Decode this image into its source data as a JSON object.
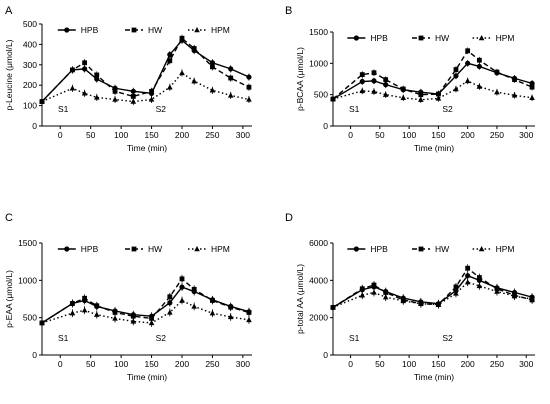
{
  "figure": {
    "legend_labels": [
      "HPB",
      "HW",
      "HPM"
    ],
    "xlabel": "Time (min)",
    "x_ticks": [
      0,
      50,
      100,
      150,
      200,
      250,
      300
    ],
    "session_labels": [
      "S1",
      "S2"
    ]
  },
  "chart_data": [
    {
      "panel": "A",
      "type": "line",
      "ylabel": "p-Leucine (μmol/L)",
      "ylim": [
        0,
        500
      ],
      "y_ticks": [
        0,
        100,
        200,
        300,
        400,
        500
      ],
      "xlim": [
        -30,
        315
      ],
      "x": [
        -30,
        20,
        40,
        60,
        90,
        120,
        150,
        180,
        200,
        220,
        250,
        280,
        310
      ],
      "series": [
        {
          "name": "HPB",
          "values": [
            120,
            275,
            280,
            230,
            185,
            170,
            160,
            350,
            420,
            370,
            310,
            280,
            240
          ]
        },
        {
          "name": "HW",
          "values": [
            120,
            275,
            310,
            250,
            170,
            145,
            170,
            320,
            430,
            380,
            290,
            235,
            190
          ]
        },
        {
          "name": "HPM",
          "values": [
            120,
            185,
            160,
            140,
            130,
            120,
            130,
            190,
            260,
            220,
            175,
            150,
            130
          ]
        }
      ],
      "annotations": [
        "S1",
        "S2"
      ],
      "legend": "top-left"
    },
    {
      "panel": "B",
      "type": "line",
      "ylabel": "p-BCAA (μmol/L)",
      "ylim": [
        0,
        1500
      ],
      "y_ticks": [
        0,
        500,
        1000,
        1500
      ],
      "xlim": [
        -30,
        315
      ],
      "x": [
        -30,
        20,
        40,
        60,
        90,
        120,
        150,
        180,
        200,
        220,
        250,
        280,
        310
      ],
      "series": [
        {
          "name": "HPB",
          "values": [
            430,
            710,
            720,
            660,
            580,
            540,
            510,
            800,
            1000,
            950,
            850,
            760,
            680
          ]
        },
        {
          "name": "HW",
          "values": [
            430,
            820,
            850,
            740,
            590,
            500,
            510,
            900,
            1200,
            1050,
            860,
            740,
            620
          ]
        },
        {
          "name": "HPM",
          "values": [
            430,
            560,
            550,
            500,
            450,
            420,
            440,
            590,
            720,
            630,
            540,
            490,
            450
          ]
        }
      ],
      "annotations": [
        "S1",
        "S2"
      ],
      "legend": "top"
    },
    {
      "panel": "C",
      "type": "line",
      "ylabel": "p-EAA (μmol/L)",
      "ylim": [
        0,
        1500
      ],
      "y_ticks": [
        0,
        500,
        1000,
        1500
      ],
      "xlim": [
        -30,
        315
      ],
      "x": [
        -30,
        20,
        40,
        60,
        90,
        120,
        150,
        180,
        200,
        220,
        250,
        280,
        310
      ],
      "series": [
        {
          "name": "HPB",
          "values": [
            430,
            690,
            730,
            650,
            590,
            540,
            520,
            700,
            910,
            850,
            740,
            650,
            580
          ]
        },
        {
          "name": "HW",
          "values": [
            430,
            690,
            760,
            660,
            570,
            520,
            490,
            780,
            1020,
            880,
            730,
            640,
            570
          ]
        },
        {
          "name": "HPM",
          "values": [
            430,
            560,
            600,
            540,
            490,
            450,
            430,
            570,
            730,
            650,
            560,
            510,
            470
          ]
        }
      ],
      "annotations": [
        "S1",
        "S2"
      ],
      "legend": "top"
    },
    {
      "panel": "D",
      "type": "line",
      "ylabel": "p-total AA (μmol/L)",
      "ylim": [
        0,
        6000
      ],
      "y_ticks": [
        0,
        2000,
        4000,
        6000
      ],
      "xlim": [
        -30,
        315
      ],
      "x": [
        -30,
        20,
        40,
        60,
        90,
        120,
        150,
        180,
        200,
        220,
        250,
        280,
        310
      ],
      "series": [
        {
          "name": "HPB",
          "values": [
            2550,
            3500,
            3650,
            3400,
            3050,
            2850,
            2750,
            3450,
            4250,
            4000,
            3600,
            3350,
            3100
          ]
        },
        {
          "name": "HW",
          "values": [
            2550,
            3550,
            3750,
            3350,
            2950,
            2750,
            2700,
            3650,
            4650,
            4150,
            3550,
            3200,
            2950
          ]
        },
        {
          "name": "HPM",
          "values": [
            2550,
            3200,
            3350,
            3100,
            2900,
            2750,
            2700,
            3300,
            3900,
            3700,
            3400,
            3150,
            3000
          ]
        }
      ],
      "annotations": [
        "S1",
        "S2"
      ],
      "legend": "top"
    }
  ]
}
